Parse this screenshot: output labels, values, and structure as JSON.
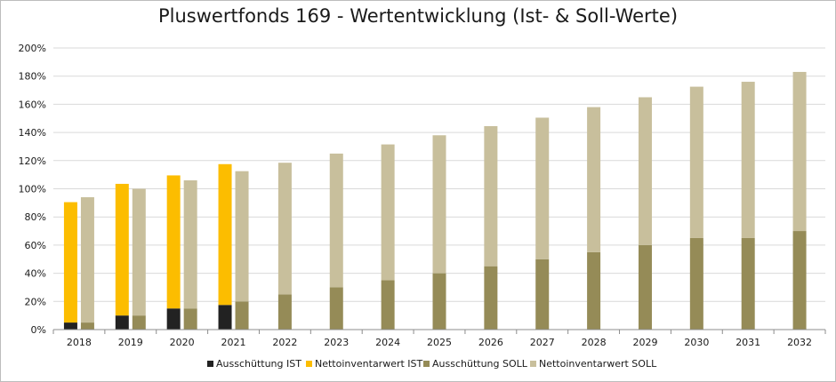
{
  "chart_data": {
    "type": "bar",
    "title": "Pluswertfonds 169 - Wertentwicklung (Ist- & Soll-Werte)",
    "xlabel": "",
    "ylabel": "",
    "ylim": [
      0,
      200
    ],
    "y_ticks": [
      "0%",
      "20%",
      "40%",
      "60%",
      "80%",
      "100%",
      "120%",
      "140%",
      "160%",
      "180%",
      "200%"
    ],
    "grid": true,
    "legend_position": "bottom",
    "categories": [
      "2018",
      "2019",
      "2020",
      "2021",
      "2022",
      "2023",
      "2024",
      "2025",
      "2026",
      "2027",
      "2028",
      "2029",
      "2030",
      "2031",
      "2032"
    ],
    "stacks": [
      {
        "name": "IST",
        "series": [
          {
            "name": "Ausschüttung IST",
            "color": "#222222",
            "values": [
              5,
              10,
              15,
              17.5,
              null,
              null,
              null,
              null,
              null,
              null,
              null,
              null,
              null,
              null,
              null
            ]
          },
          {
            "name": "Nettoinventarwert IST",
            "color": "#fcbd00",
            "values": [
              85.5,
              93.5,
              94.5,
              100,
              null,
              null,
              null,
              null,
              null,
              null,
              null,
              null,
              null,
              null,
              null
            ]
          }
        ]
      },
      {
        "name": "SOLL",
        "series": [
          {
            "name": "Ausschüttung SOLL",
            "color": "#958b57",
            "values": [
              5,
              10,
              15,
              20,
              25,
              30,
              35,
              40,
              45,
              50,
              55,
              60,
              65,
              65,
              70
            ]
          },
          {
            "name": "Nettoinventarwert SOLL",
            "color": "#c8bf9c",
            "values": [
              89,
              90,
              91,
              92.5,
              93.5,
              95,
              96.5,
              98,
              99.5,
              100.5,
              103,
              105,
              107.5,
              111,
              113
            ]
          }
        ]
      }
    ],
    "legend": [
      "Ausschüttung IST",
      "Nettoinventarwert IST",
      "Ausschüttung SOLL",
      "Nettoinventarwert SOLL"
    ]
  }
}
